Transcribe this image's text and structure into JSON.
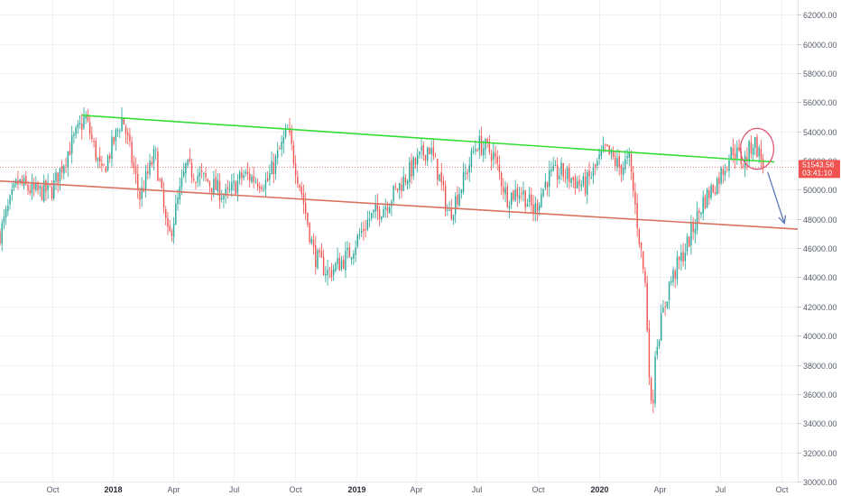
{
  "chart_data": {
    "type": "candlestick",
    "y_axis": {
      "ticks": [
        "62000.00",
        "60000.00",
        "58000.00",
        "56000.00",
        "54000.00",
        "52000.00",
        "50000.00",
        "48000.00",
        "46000.00",
        "44000.00",
        "42000.00",
        "40000.00",
        "38000.00",
        "36000.00",
        "34000.00",
        "32000.00",
        "30000.00"
      ],
      "ylim": [
        30000,
        63000
      ],
      "position": "right"
    },
    "x_axis": {
      "ticks": [
        {
          "label": "Oct",
          "date": "2017-10-01",
          "bold": false
        },
        {
          "label": "2018",
          "date": "2018-01-01",
          "bold": true
        },
        {
          "label": "Apr",
          "date": "2018-04-01",
          "bold": false
        },
        {
          "label": "Jul",
          "date": "2018-07-01",
          "bold": false
        },
        {
          "label": "Oct",
          "date": "2018-10-01",
          "bold": false
        },
        {
          "label": "2019",
          "date": "2019-01-01",
          "bold": true
        },
        {
          "label": "Apr",
          "date": "2019-04-01",
          "bold": false
        },
        {
          "label": "Jul",
          "date": "2019-07-01",
          "bold": false
        },
        {
          "label": "Oct",
          "date": "2019-10-01",
          "bold": false
        },
        {
          "label": "2020",
          "date": "2020-01-01",
          "bold": true
        },
        {
          "label": "Apr",
          "date": "2020-04-01",
          "bold": false
        },
        {
          "label": "Jul",
          "date": "2020-07-01",
          "bold": false
        },
        {
          "label": "Oct",
          "date": "2020-10-01",
          "bold": false
        }
      ],
      "xlim": [
        "2017-07-15",
        "2020-10-25"
      ]
    },
    "last_price": {
      "label": "51543.56",
      "countdown": "03:41:10",
      "value": 51543.56
    },
    "grid": true,
    "colors": {
      "up": "#26a69a",
      "down": "#ef5350",
      "green_line": "#33dd33",
      "red_line": "#d9735f",
      "circle": "#e05a78",
      "arrow": "#5b78b8",
      "price_label": "#ef5350"
    },
    "price_path": [
      [
        "2017-07-15",
        47000
      ],
      [
        "2017-08-10",
        50500
      ],
      [
        "2017-09-05",
        49800
      ],
      [
        "2017-10-01",
        50000
      ],
      [
        "2017-10-25",
        52600
      ],
      [
        "2017-11-20",
        55000
      ],
      [
        "2017-12-15",
        51000
      ],
      [
        "2018-01-15",
        55000
      ],
      [
        "2018-02-10",
        49500
      ],
      [
        "2018-03-05",
        52500
      ],
      [
        "2018-03-25",
        46500
      ],
      [
        "2018-04-20",
        51500
      ],
      [
        "2018-05-25",
        50500
      ],
      [
        "2018-06-20",
        49500
      ],
      [
        "2018-07-15",
        51000
      ],
      [
        "2018-08-20",
        50500
      ],
      [
        "2018-09-20",
        54000
      ],
      [
        "2018-10-10",
        50000
      ],
      [
        "2018-10-30",
        45500
      ],
      [
        "2018-11-20",
        44300
      ],
      [
        "2018-12-20",
        45500
      ],
      [
        "2019-01-20",
        48000
      ],
      [
        "2019-02-15",
        49000
      ],
      [
        "2019-03-15",
        50800
      ],
      [
        "2019-04-20",
        53000
      ],
      [
        "2019-05-05",
        51000
      ],
      [
        "2019-05-20",
        48200
      ],
      [
        "2019-06-10",
        50500
      ],
      [
        "2019-07-01",
        53200
      ],
      [
        "2019-07-25",
        52500
      ],
      [
        "2019-08-15",
        49500
      ],
      [
        "2019-09-05",
        50000
      ],
      [
        "2019-09-25",
        48500
      ],
      [
        "2019-10-15",
        50800
      ],
      [
        "2019-11-05",
        51200
      ],
      [
        "2019-12-10",
        50200
      ],
      [
        "2020-01-10",
        52700
      ],
      [
        "2020-02-01",
        51500
      ],
      [
        "2020-02-15",
        52000
      ],
      [
        "2020-02-25",
        48500
      ],
      [
        "2020-03-10",
        43500
      ],
      [
        "2020-03-20",
        34000
      ],
      [
        "2020-03-25",
        39000
      ],
      [
        "2020-04-15",
        43500
      ],
      [
        "2020-05-10",
        46000
      ],
      [
        "2020-06-05",
        49200
      ],
      [
        "2020-06-25",
        50500
      ],
      [
        "2020-07-20",
        52800
      ],
      [
        "2020-08-05",
        51800
      ],
      [
        "2020-08-20",
        53400
      ],
      [
        "2020-09-05",
        51543
      ]
    ],
    "trend_lines": [
      {
        "name": "green",
        "p1": [
          "2017-11-15",
          55100
        ],
        "p2": [
          "2020-09-20",
          51900
        ]
      },
      {
        "name": "red",
        "p1": [
          "2017-07-15",
          50600
        ],
        "p2": [
          "2020-10-25",
          47300
        ]
      }
    ],
    "annotations": [
      {
        "type": "ellipse",
        "center": [
          "2020-08-25",
          52800
        ],
        "rx_days": 25,
        "ry_value": 1400
      },
      {
        "type": "arrow",
        "from": [
          "2020-09-10",
          51200
        ],
        "to": [
          "2020-10-05",
          47700
        ]
      }
    ]
  }
}
